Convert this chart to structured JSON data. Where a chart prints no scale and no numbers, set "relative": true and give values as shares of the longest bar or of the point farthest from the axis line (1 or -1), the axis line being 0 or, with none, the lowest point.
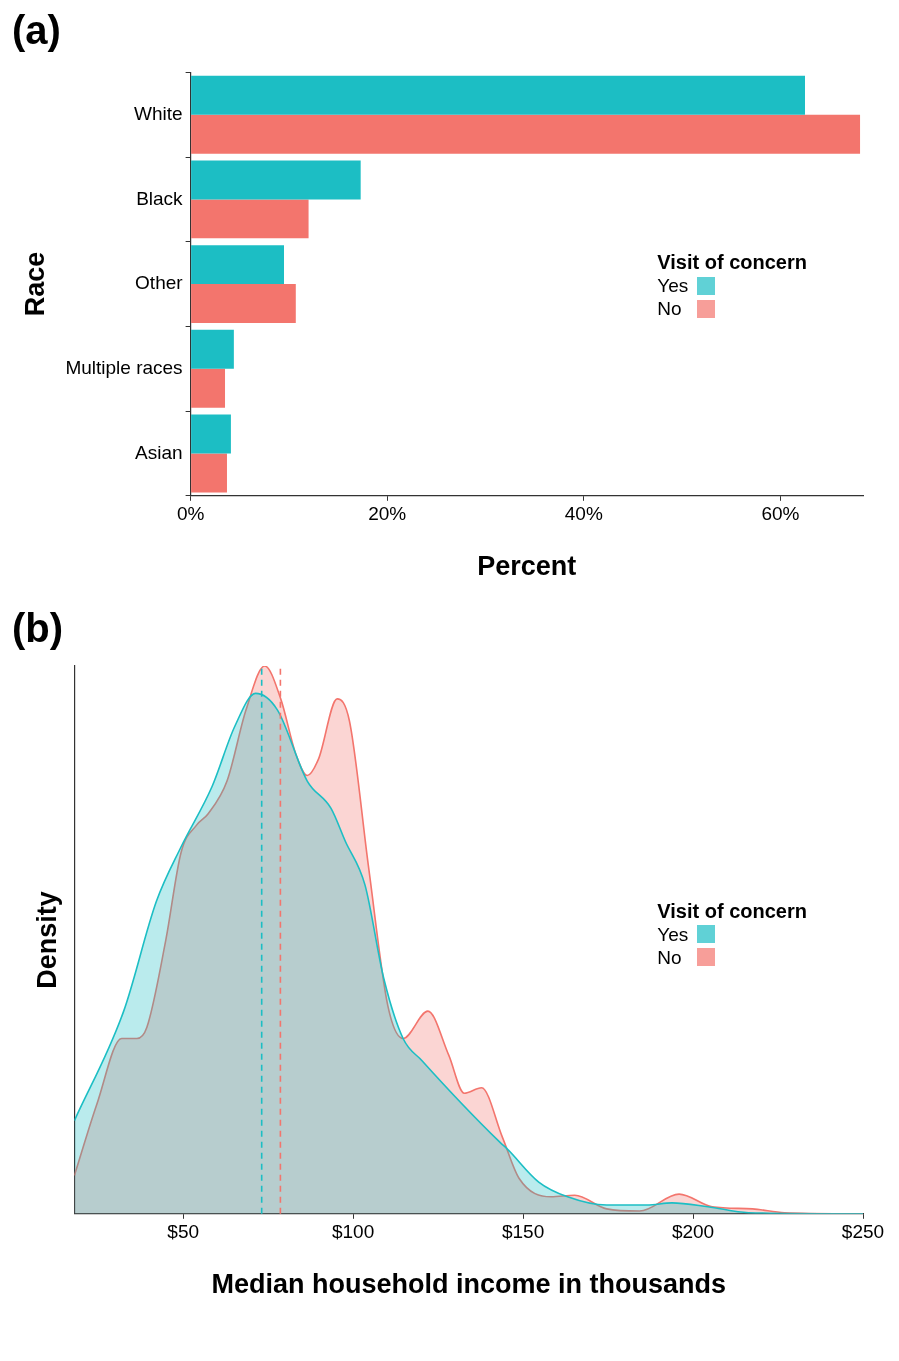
{
  "chart_data": [
    {
      "type": "bar",
      "title": "(a)",
      "orientation": "horizontal",
      "xlabel": "Percent",
      "ylabel": "Race",
      "legend_title": "Visit of concern",
      "legend": "right",
      "categories": [
        "White",
        "Black",
        "Other",
        "Multiple races",
        "Asian"
      ],
      "series": [
        {
          "name": "Yes",
          "color": "#1cbec4",
          "values": [
            62.5,
            17.3,
            9.5,
            4.4,
            4.1
          ]
        },
        {
          "name": "No",
          "color": "#f3756d",
          "values": [
            68.1,
            12.0,
            10.7,
            3.5,
            3.7
          ]
        }
      ],
      "xlim": [
        0,
        68.4
      ],
      "xticks": [
        {
          "value": 0,
          "label": "0%"
        },
        {
          "value": 20,
          "label": "20%"
        },
        {
          "value": 40,
          "label": "40%"
        },
        {
          "value": 60,
          "label": "60%"
        }
      ],
      "grid": false
    },
    {
      "type": "area",
      "title": "(b)",
      "xlabel": "Median household income in thousands",
      "ylabel": "Density",
      "legend_title": "Visit of concern",
      "legend": "right",
      "relative": true,
      "tick_labels": "x",
      "series": [
        {
          "name": "Yes",
          "color": "#1cbec4",
          "x": [
            18,
            32.5,
            42.1,
            49.4,
            58.5,
            65.2,
            71.3,
            77.7,
            86.5,
            93.5,
            97.7,
            103.5,
            109,
            114.7,
            120.2,
            143.3,
            145.1,
            154.6,
            163.1,
            174.6,
            186.5,
            193.8,
            204.4,
            216.3,
            250
          ],
          "values": [
            0.17,
            0.37,
            0.57,
            0.67,
            0.78,
            0.89,
            0.95,
            0.92,
            0.79,
            0.74,
            0.68,
            0.6,
            0.43,
            0.32,
            0.28,
            0.13,
            0.12,
            0.058,
            0.031,
            0.016,
            0.016,
            0.02,
            0.013,
            0.002,
            0
          ]
        },
        {
          "name": "No",
          "color": "#f3756d",
          "x": [
            18,
            24.6,
            31.9,
            36.4,
            39.3,
            44.9,
            49.4,
            54,
            57.3,
            62.9,
            68.5,
            74,
            78.7,
            83.1,
            86.5,
            89.8,
            95.3,
            98.9,
            104.6,
            110.2,
            114.7,
            122,
            128.1,
            132.7,
            137.8,
            143.9,
            148.8,
            158.2,
            165.2,
            174.6,
            184.3,
            195.9,
            205.6,
            217.5,
            226.9,
            250
          ],
          "values": [
            0.07,
            0.2,
            0.32,
            0.32,
            0.34,
            0.5,
            0.66,
            0.71,
            0.73,
            0.79,
            0.92,
            1,
            0.94,
            0.84,
            0.8,
            0.83,
            0.94,
            0.9,
            0.63,
            0.38,
            0.32,
            0.37,
            0.29,
            0.22,
            0.23,
            0.14,
            0.065,
            0.031,
            0.034,
            0.009,
            0.005,
            0.036,
            0.013,
            0.009,
            0.002,
            0
          ]
        }
      ],
      "ref_lines": [
        {
          "axis": "x",
          "value": 73.1,
          "color": "#1cbec4",
          "line_style": "dashed"
        },
        {
          "axis": "x",
          "value": 78.6,
          "color": "#f3756d",
          "line_style": "dashed"
        }
      ],
      "xlim": [
        18,
        250
      ],
      "xticks": [
        {
          "value": 50,
          "label": "$50"
        },
        {
          "value": 100,
          "label": "$100"
        },
        {
          "value": 150,
          "label": "$150"
        },
        {
          "value": 200,
          "label": "$200"
        },
        {
          "value": 250,
          "label": "$250"
        }
      ],
      "grid": false
    }
  ]
}
